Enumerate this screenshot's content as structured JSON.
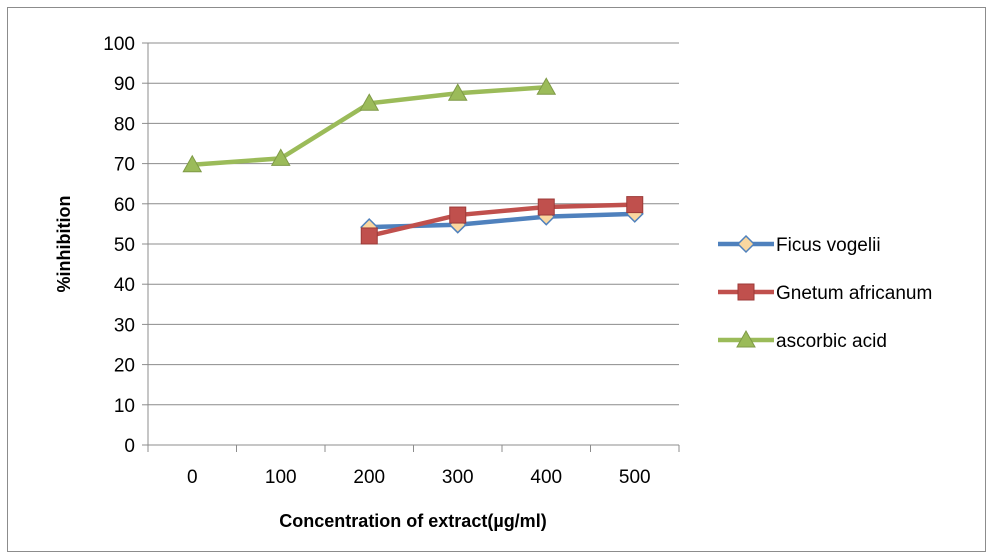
{
  "chart_data": {
    "type": "line",
    "title": "",
    "xlabel": "Concentration of extract(µg/ml)",
    "ylabel": "%inhibition",
    "categories": [
      "0",
      "100",
      "200",
      "300",
      "400",
      "500"
    ],
    "ylim": [
      0,
      100
    ],
    "ytick_step": 10,
    "yticks": [
      "0",
      "10",
      "20",
      "30",
      "40",
      "50",
      "60",
      "70",
      "80",
      "90",
      "100"
    ],
    "grid": "horizontal",
    "legend_position": "right",
    "series": [
      {
        "name": "Ficus vogelii",
        "color": "#4F81BD",
        "marker": "diamond",
        "marker_fill": "#FAD7A0",
        "values": [
          null,
          null,
          54.2,
          54.8,
          56.8,
          57.5
        ]
      },
      {
        "name": "Gnetum africanum",
        "color": "#C0504D",
        "marker": "square",
        "marker_fill": "#C0504D",
        "values": [
          null,
          null,
          52.0,
          57.2,
          59.2,
          59.8
        ]
      },
      {
        "name": "ascorbic acid",
        "color": "#9BBB59",
        "marker": "triangle",
        "marker_fill": "#9BBB59",
        "values": [
          69.7,
          71.3,
          85.0,
          87.5,
          89.0,
          null
        ]
      }
    ]
  }
}
